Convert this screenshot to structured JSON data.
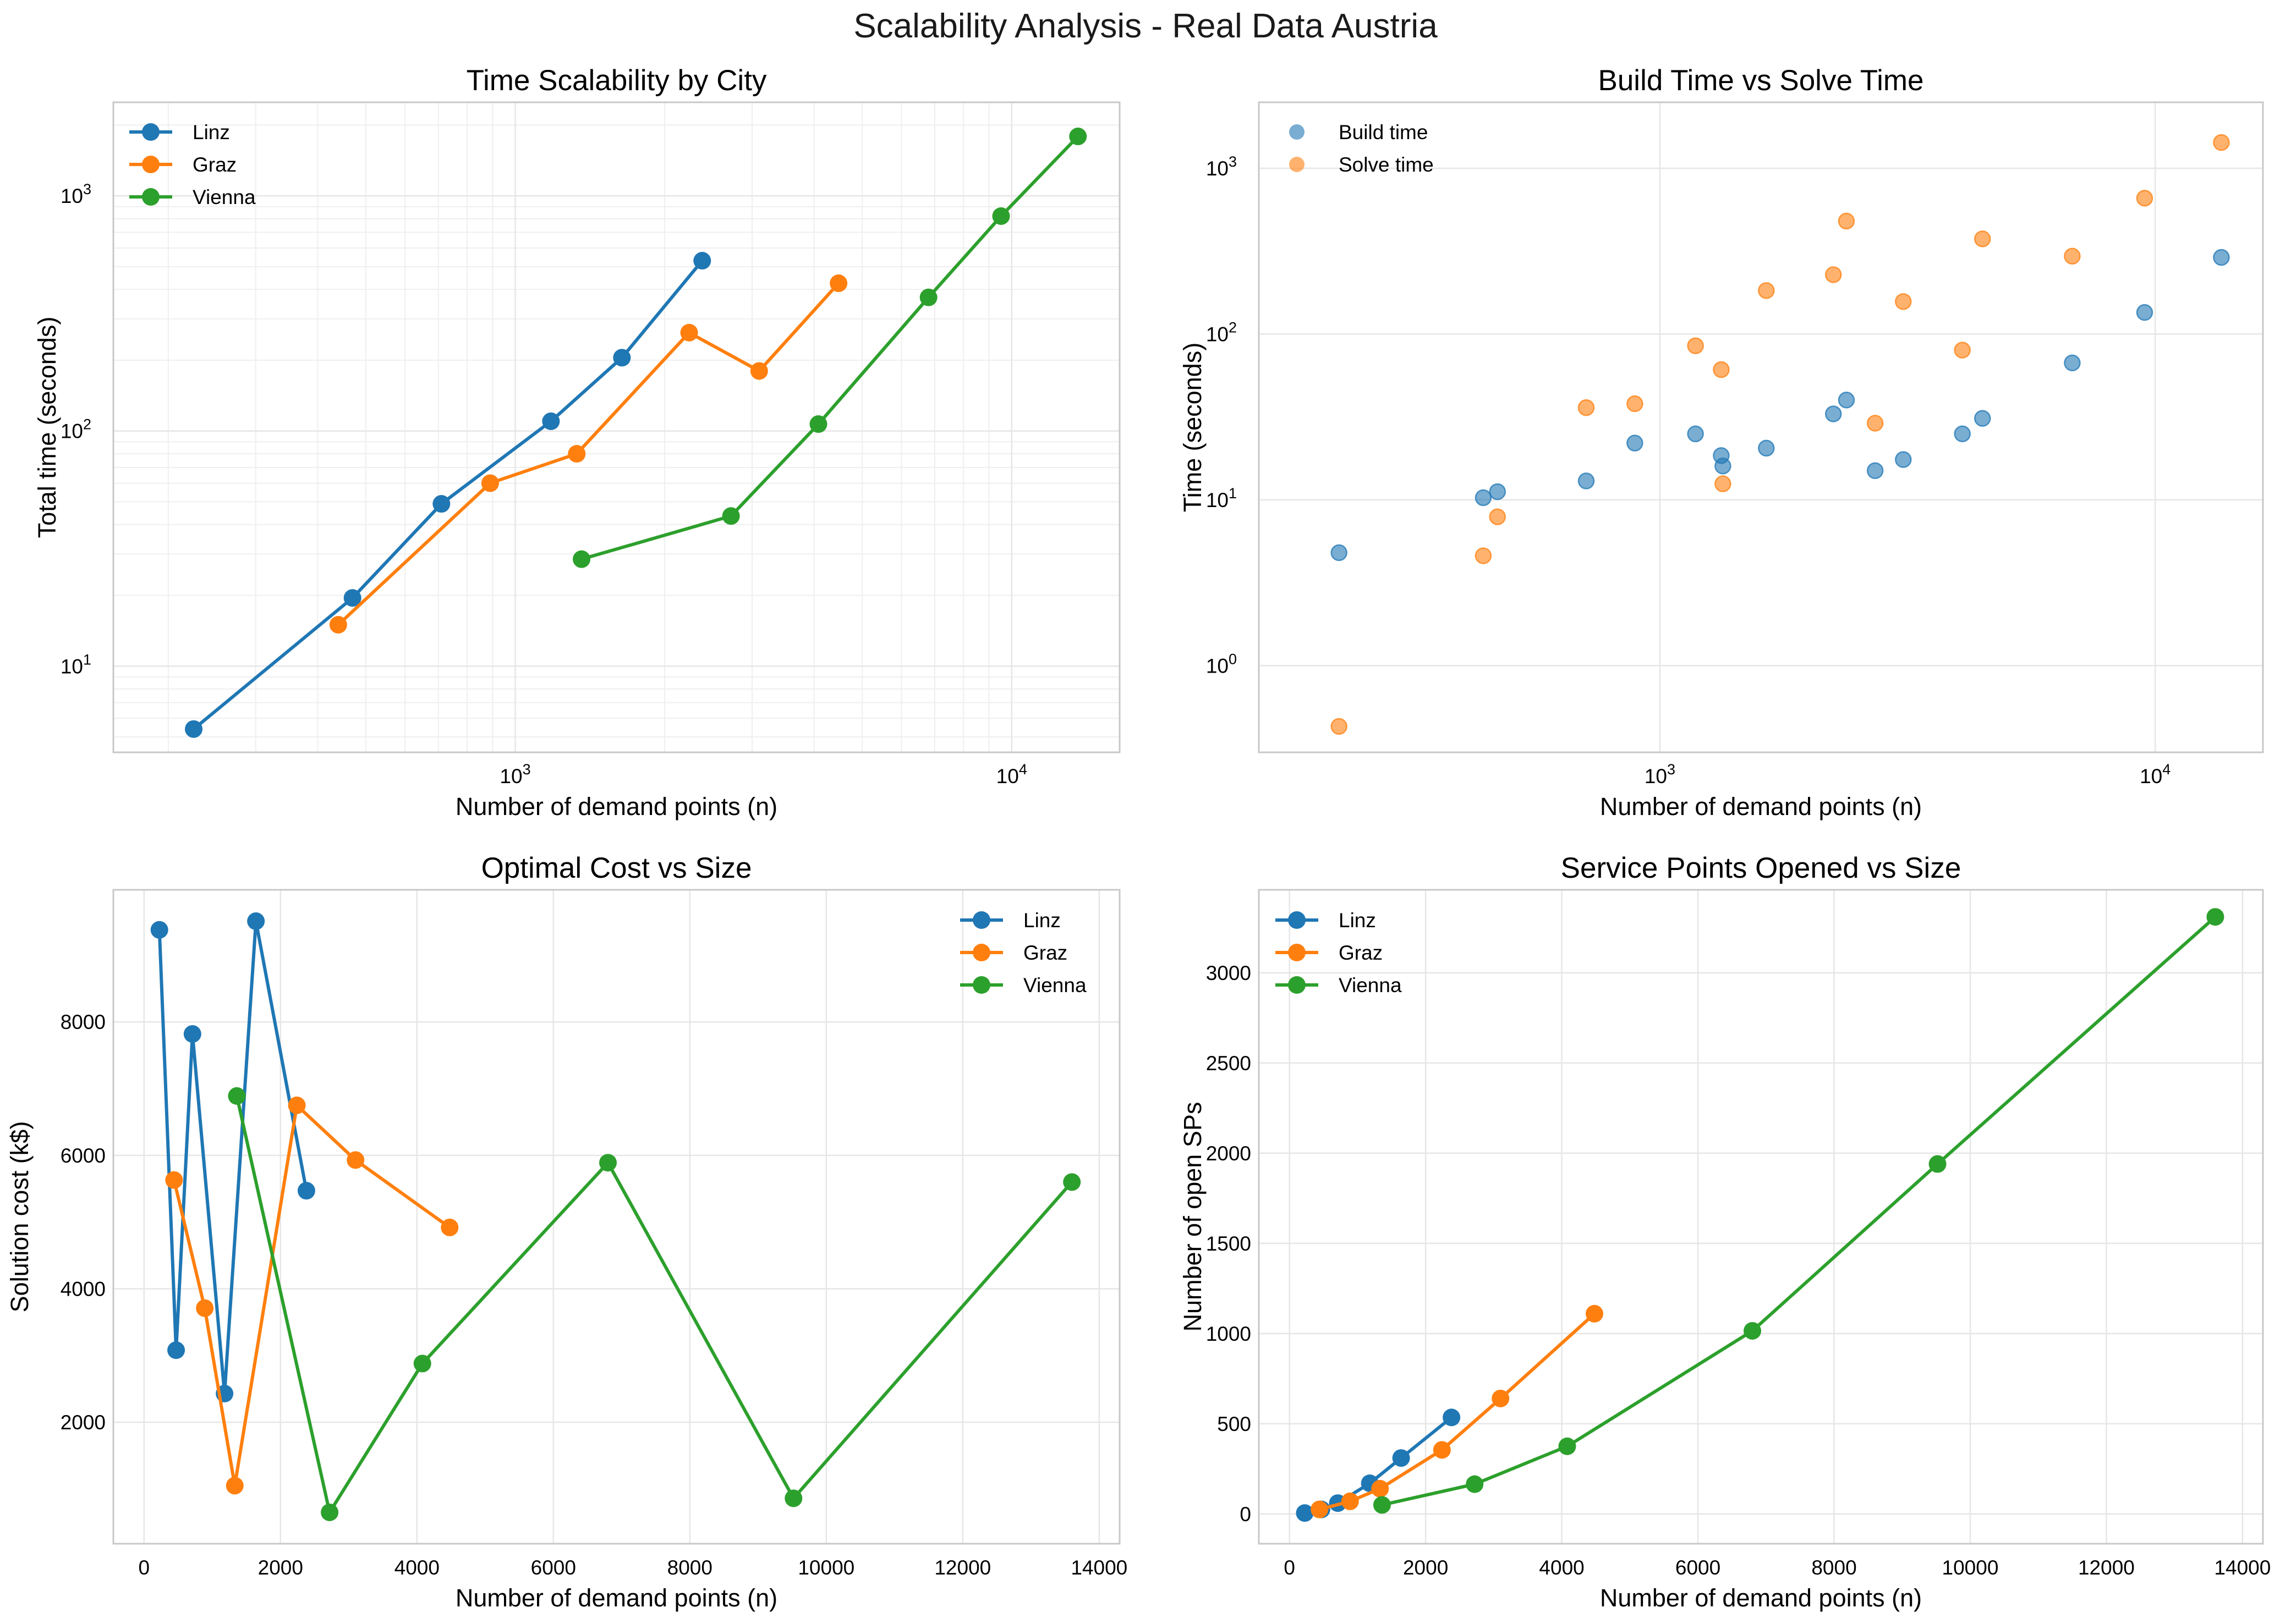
{
  "figure": {
    "title": "Scalability Analysis - Real Data Austria"
  },
  "colors": {
    "linz": "#1f77b4",
    "graz": "#ff7f0e",
    "vienna": "#2ca02c",
    "grid": "#e6e6e6",
    "spine": "#c8c8c8"
  },
  "chart_data": [
    {
      "type": "line",
      "title": "Time Scalability by City",
      "xlabel": "Number of demand points (n)",
      "ylabel": "Total time (seconds)",
      "xscale": "log",
      "yscale": "log",
      "xlim": [
        155,
        16500
      ],
      "ylim": [
        4.3,
        2500
      ],
      "xticks": [
        {
          "base": "10",
          "exp": "3",
          "value": 1000
        },
        {
          "base": "10",
          "exp": "4",
          "value": 10000
        }
      ],
      "yticks": [
        {
          "base": "10",
          "exp": "1",
          "value": 10
        },
        {
          "base": "10",
          "exp": "2",
          "value": 100
        },
        {
          "base": "10",
          "exp": "3",
          "value": 1000
        }
      ],
      "grid": "major+minor",
      "legend": "upper left",
      "series": [
        {
          "name": "Linz",
          "color": "#1f77b4",
          "marker": "o",
          "line": true,
          "x": [
            225,
            470,
            710,
            1180,
            1640,
            2380
          ],
          "y": [
            5.4,
            19.5,
            49,
            110,
            205,
            530
          ]
        },
        {
          "name": "Graz",
          "color": "#ff7f0e",
          "marker": "o",
          "line": true,
          "x": [
            440,
            890,
            1330,
            2240,
            3100,
            4480
          ],
          "y": [
            15,
            60,
            80,
            262,
            180,
            425
          ]
        },
        {
          "name": "Vienna",
          "color": "#2ca02c",
          "marker": "o",
          "line": true,
          "x": [
            1360,
            2720,
            4080,
            6800,
            9520,
            13600
          ],
          "y": [
            28.5,
            43.5,
            107,
            370,
            820,
            1790
          ]
        }
      ]
    },
    {
      "type": "scatter",
      "title": "Build Time vs Solve Time",
      "xlabel": "Number of demand points (n)",
      "ylabel": "Time (seconds)",
      "xscale": "log",
      "yscale": "log",
      "xlim": [
        155,
        16500
      ],
      "ylim": [
        0.3,
        2500
      ],
      "xticks": [
        {
          "base": "10",
          "exp": "3",
          "value": 1000
        },
        {
          "base": "10",
          "exp": "4",
          "value": 10000
        }
      ],
      "yticks": [
        {
          "base": "10",
          "exp": "0",
          "value": 1
        },
        {
          "base": "10",
          "exp": "1",
          "value": 10
        },
        {
          "base": "10",
          "exp": "2",
          "value": 100
        },
        {
          "base": "10",
          "exp": "3",
          "value": 1000
        }
      ],
      "grid": "major",
      "legend": "upper left",
      "series": [
        {
          "name": "Build time",
          "color": "#1f77b4",
          "marker": "o",
          "line": false,
          "x": [
            225,
            440,
            470,
            710,
            890,
            1180,
            1330,
            1340,
            1640,
            2240,
            2380,
            2720,
            3100,
            4080,
            4480,
            6800,
            9520,
            13600
          ],
          "y": [
            4.8,
            10.3,
            11.2,
            13,
            22,
            25,
            18.5,
            16,
            20.5,
            33,
            40,
            15,
            17.5,
            25,
            31,
            67,
            135,
            290
          ]
        },
        {
          "name": "Solve time",
          "color": "#ff7f0e",
          "marker": "o",
          "line": false,
          "x": [
            225,
            440,
            470,
            710,
            890,
            1180,
            1330,
            1340,
            1640,
            2240,
            2380,
            2720,
            3100,
            4080,
            4480,
            6800,
            9520,
            13600
          ],
          "y": [
            0.43,
            4.6,
            7.9,
            36,
            38,
            85,
            61,
            12.5,
            183,
            228,
            480,
            29,
            157,
            80,
            375,
            295,
            660,
            1430
          ]
        }
      ]
    },
    {
      "type": "line",
      "title": "Optimal Cost vs Size",
      "xlabel": "Number of demand points (n)",
      "ylabel": "Solution cost (k$)",
      "xscale": "linear",
      "yscale": "linear",
      "xlim": [
        -450,
        14300
      ],
      "ylim": [
        180,
        9980
      ],
      "xticks": [
        0,
        2000,
        4000,
        6000,
        8000,
        10000,
        12000,
        14000
      ],
      "yticks": [
        2000,
        4000,
        6000,
        8000
      ],
      "grid": "major",
      "legend": "upper right",
      "series": [
        {
          "name": "Linz",
          "color": "#1f77b4",
          "marker": "o",
          "line": true,
          "x": [
            225,
            470,
            710,
            1180,
            1640,
            2380
          ],
          "y": [
            9380,
            3080,
            7820,
            2430,
            9510,
            5470
          ]
        },
        {
          "name": "Graz",
          "color": "#ff7f0e",
          "marker": "o",
          "line": true,
          "x": [
            440,
            890,
            1330,
            2240,
            3100,
            4480
          ],
          "y": [
            5630,
            3710,
            1050,
            6750,
            5930,
            4920
          ]
        },
        {
          "name": "Vienna",
          "color": "#2ca02c",
          "marker": "o",
          "line": true,
          "x": [
            1360,
            2720,
            4080,
            6800,
            9520,
            13600
          ],
          "y": [
            6890,
            650,
            2880,
            5890,
            860,
            5600
          ]
        }
      ]
    },
    {
      "type": "line",
      "title": "Service Points Opened vs Size",
      "xlabel": "Number of demand points (n)",
      "ylabel": "Number of open SPs",
      "xscale": "linear",
      "yscale": "linear",
      "xlim": [
        -450,
        14300
      ],
      "ylim": [
        -165,
        3460
      ],
      "xticks": [
        0,
        2000,
        4000,
        6000,
        8000,
        10000,
        12000,
        14000
      ],
      "yticks": [
        0,
        500,
        1000,
        1500,
        2000,
        2500,
        3000
      ],
      "grid": "major",
      "legend": "upper left",
      "series": [
        {
          "name": "Linz",
          "color": "#1f77b4",
          "marker": "o",
          "line": true,
          "x": [
            225,
            470,
            710,
            1180,
            1640,
            2380
          ],
          "y": [
            5,
            25,
            60,
            170,
            310,
            535
          ]
        },
        {
          "name": "Graz",
          "color": "#ff7f0e",
          "marker": "o",
          "line": true,
          "x": [
            440,
            890,
            1330,
            2240,
            3100,
            4480
          ],
          "y": [
            25,
            70,
            140,
            355,
            640,
            1110
          ]
        },
        {
          "name": "Vienna",
          "color": "#2ca02c",
          "marker": "o",
          "line": true,
          "x": [
            1360,
            2720,
            4080,
            6800,
            9520,
            13600
          ],
          "y": [
            50,
            165,
            375,
            1015,
            1940,
            3310
          ]
        }
      ]
    }
  ]
}
